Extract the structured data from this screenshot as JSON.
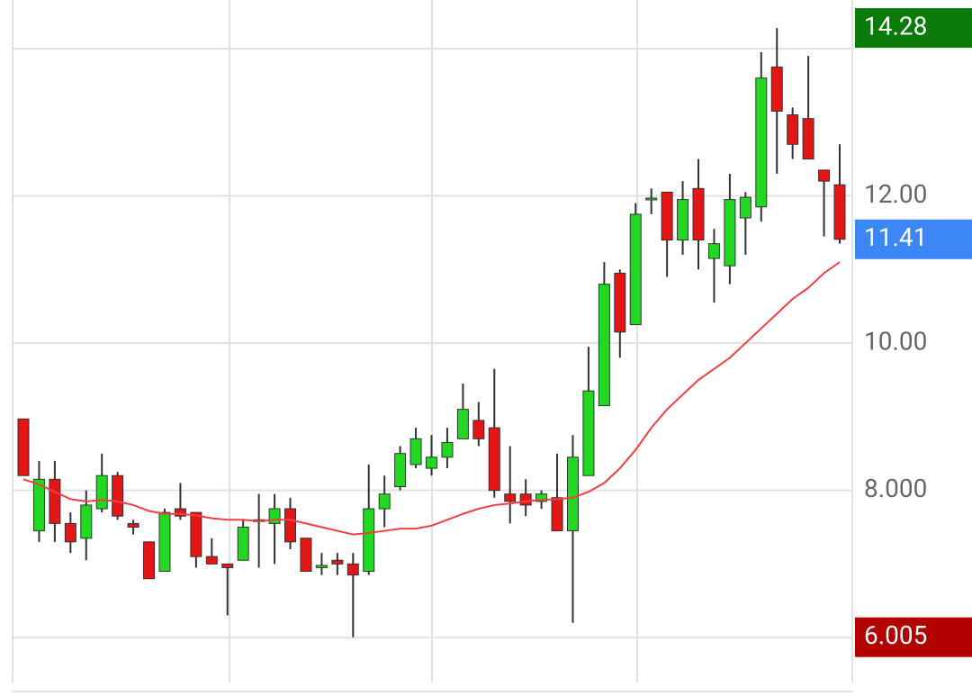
{
  "chart_data": {
    "type": "candlestick",
    "up_color": "#22d822",
    "down_color": "#e31515",
    "ma_color": "#f04040",
    "ylim": [
      5.39,
      14.66
    ],
    "yticks": [
      {
        "value": 6,
        "label": null
      },
      {
        "value": 8,
        "label": "8.000"
      },
      {
        "value": 10,
        "label": "10.00"
      },
      {
        "value": 12,
        "label": "12.00"
      },
      {
        "value": 14,
        "label": null
      }
    ],
    "grid": true,
    "max": 14.28,
    "min": 6.005,
    "last": 11.41,
    "open": [
      8.97,
      7.45,
      8.15,
      7.55,
      7.35,
      7.75,
      8.2,
      7.55,
      7.3,
      6.9,
      7.75,
      7.7,
      7.1,
      7.0,
      7.05,
      7.6,
      7.55,
      7.75,
      7.35,
      6.95,
      7.05,
      7.0,
      6.9,
      7.75,
      8.05,
      8.35,
      8.3,
      8.45,
      8.7,
      8.95,
      8.85,
      7.95,
      7.95,
      7.85,
      7.9,
      7.45,
      8.2,
      9.15,
      10.95,
      10.25,
      11.95,
      12.05,
      11.4,
      12.1,
      11.15,
      11.05,
      11.7,
      11.85,
      13.75,
      13.1,
      13.05,
      12.35,
      12.15
    ],
    "high": [
      8.97,
      8.4,
      8.4,
      7.7,
      8.0,
      8.5,
      8.25,
      7.6,
      7.3,
      7.75,
      8.1,
      7.7,
      7.35,
      7.0,
      7.6,
      7.95,
      7.95,
      7.9,
      7.35,
      7.15,
      7.15,
      7.15,
      8.35,
      8.2,
      8.6,
      8.85,
      8.75,
      8.85,
      9.45,
      9.2,
      9.65,
      8.6,
      8.15,
      8.0,
      8.5,
      8.75,
      9.95,
      11.1,
      11.0,
      11.9,
      12.1,
      12.05,
      12.2,
      12.5,
      11.55,
      12.3,
      12.05,
      13.95,
      14.28,
      13.2,
      13.9,
      12.35,
      12.7
    ],
    "low": [
      8.2,
      7.3,
      7.3,
      7.15,
      7.05,
      7.7,
      7.6,
      7.4,
      6.8,
      6.9,
      7.6,
      6.95,
      7.0,
      6.3,
      7.05,
      6.95,
      7.0,
      7.2,
      6.9,
      6.85,
      6.85,
      6.005,
      6.85,
      7.5,
      8.0,
      8.3,
      8.2,
      8.3,
      8.7,
      8.6,
      7.9,
      7.55,
      7.65,
      7.75,
      7.45,
      6.2,
      8.2,
      9.15,
      9.8,
      10.25,
      11.75,
      10.9,
      11.2,
      11.0,
      10.55,
      10.8,
      11.2,
      11.65,
      12.3,
      12.5,
      12.5,
      11.45,
      11.35
    ],
    "close": [
      8.2,
      8.15,
      7.55,
      7.3,
      7.8,
      8.2,
      7.65,
      7.5,
      6.8,
      7.7,
      7.65,
      7.1,
      7.0,
      6.95,
      7.5,
      7.6,
      7.75,
      7.3,
      6.9,
      6.98,
      7.0,
      6.85,
      7.75,
      7.95,
      8.5,
      8.7,
      8.45,
      8.65,
      9.1,
      8.7,
      8.0,
      7.85,
      7.8,
      7.95,
      7.45,
      8.45,
      9.35,
      10.8,
      10.15,
      11.75,
      11.97,
      11.4,
      11.95,
      11.4,
      11.35,
      11.95,
      11.98,
      13.6,
      13.15,
      12.7,
      12.5,
      12.2,
      11.41
    ],
    "ma": [
      8.15,
      8.08,
      7.98,
      7.88,
      7.85,
      7.87,
      7.85,
      7.8,
      7.72,
      7.68,
      7.68,
      7.66,
      7.62,
      7.6,
      7.6,
      7.58,
      7.6,
      7.6,
      7.55,
      7.5,
      7.45,
      7.4,
      7.42,
      7.45,
      7.48,
      7.48,
      7.52,
      7.6,
      7.68,
      7.75,
      7.8,
      7.82,
      7.85,
      7.87,
      7.88,
      7.9,
      7.98,
      8.1,
      8.3,
      8.55,
      8.85,
      9.1,
      9.3,
      9.5,
      9.65,
      9.8,
      10.0,
      10.2,
      10.4,
      10.6,
      10.75,
      10.95,
      11.1
    ]
  }
}
